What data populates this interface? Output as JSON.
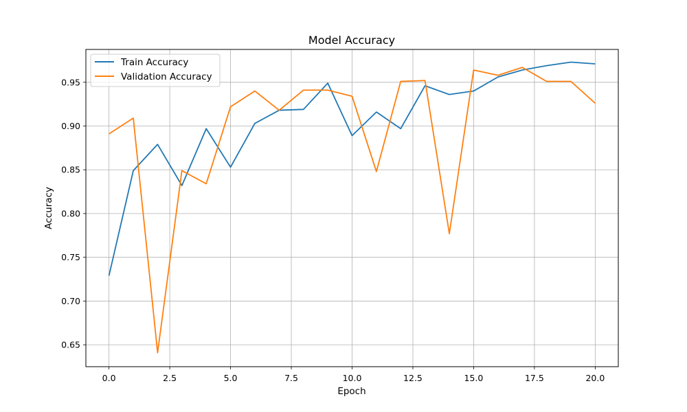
{
  "chart_data": {
    "type": "line",
    "title": "Model Accuracy",
    "xlabel": "Epoch",
    "ylabel": "Accuracy",
    "xlim": [
      -0.95,
      20.95
    ],
    "ylim": [
      0.625,
      0.9875
    ],
    "x_ticks": [
      0.0,
      2.5,
      5.0,
      7.5,
      10.0,
      12.5,
      15.0,
      17.5,
      20.0
    ],
    "x_tick_labels": [
      "0.0",
      "2.5",
      "5.0",
      "7.5",
      "10.0",
      "12.5",
      "15.0",
      "17.5",
      "20.0"
    ],
    "y_ticks": [
      0.65,
      0.7,
      0.75,
      0.8,
      0.85,
      0.9,
      0.95
    ],
    "y_tick_labels": [
      "0.65",
      "0.70",
      "0.75",
      "0.80",
      "0.85",
      "0.90",
      "0.95"
    ],
    "grid": true,
    "legend_position": "top-left",
    "x": [
      0,
      1,
      2,
      3,
      4,
      5,
      6,
      7,
      8,
      9,
      10,
      11,
      12,
      13,
      14,
      15,
      16,
      17,
      18,
      19,
      20
    ],
    "series": [
      {
        "name": "Train Accuracy",
        "color": "#1f77b4",
        "values": [
          0.729,
          0.849,
          0.879,
          0.832,
          0.897,
          0.853,
          0.903,
          0.918,
          0.919,
          0.949,
          0.889,
          0.916,
          0.897,
          0.946,
          0.936,
          0.94,
          0.956,
          0.964,
          0.969,
          0.973,
          0.971
        ]
      },
      {
        "name": "Validation Accuracy",
        "color": "#ff7f0e",
        "values": [
          0.891,
          0.909,
          0.641,
          0.849,
          0.834,
          0.922,
          0.94,
          0.918,
          0.941,
          0.941,
          0.934,
          0.848,
          0.951,
          0.952,
          0.777,
          0.964,
          0.958,
          0.967,
          0.951,
          0.951,
          0.926
        ]
      }
    ]
  }
}
